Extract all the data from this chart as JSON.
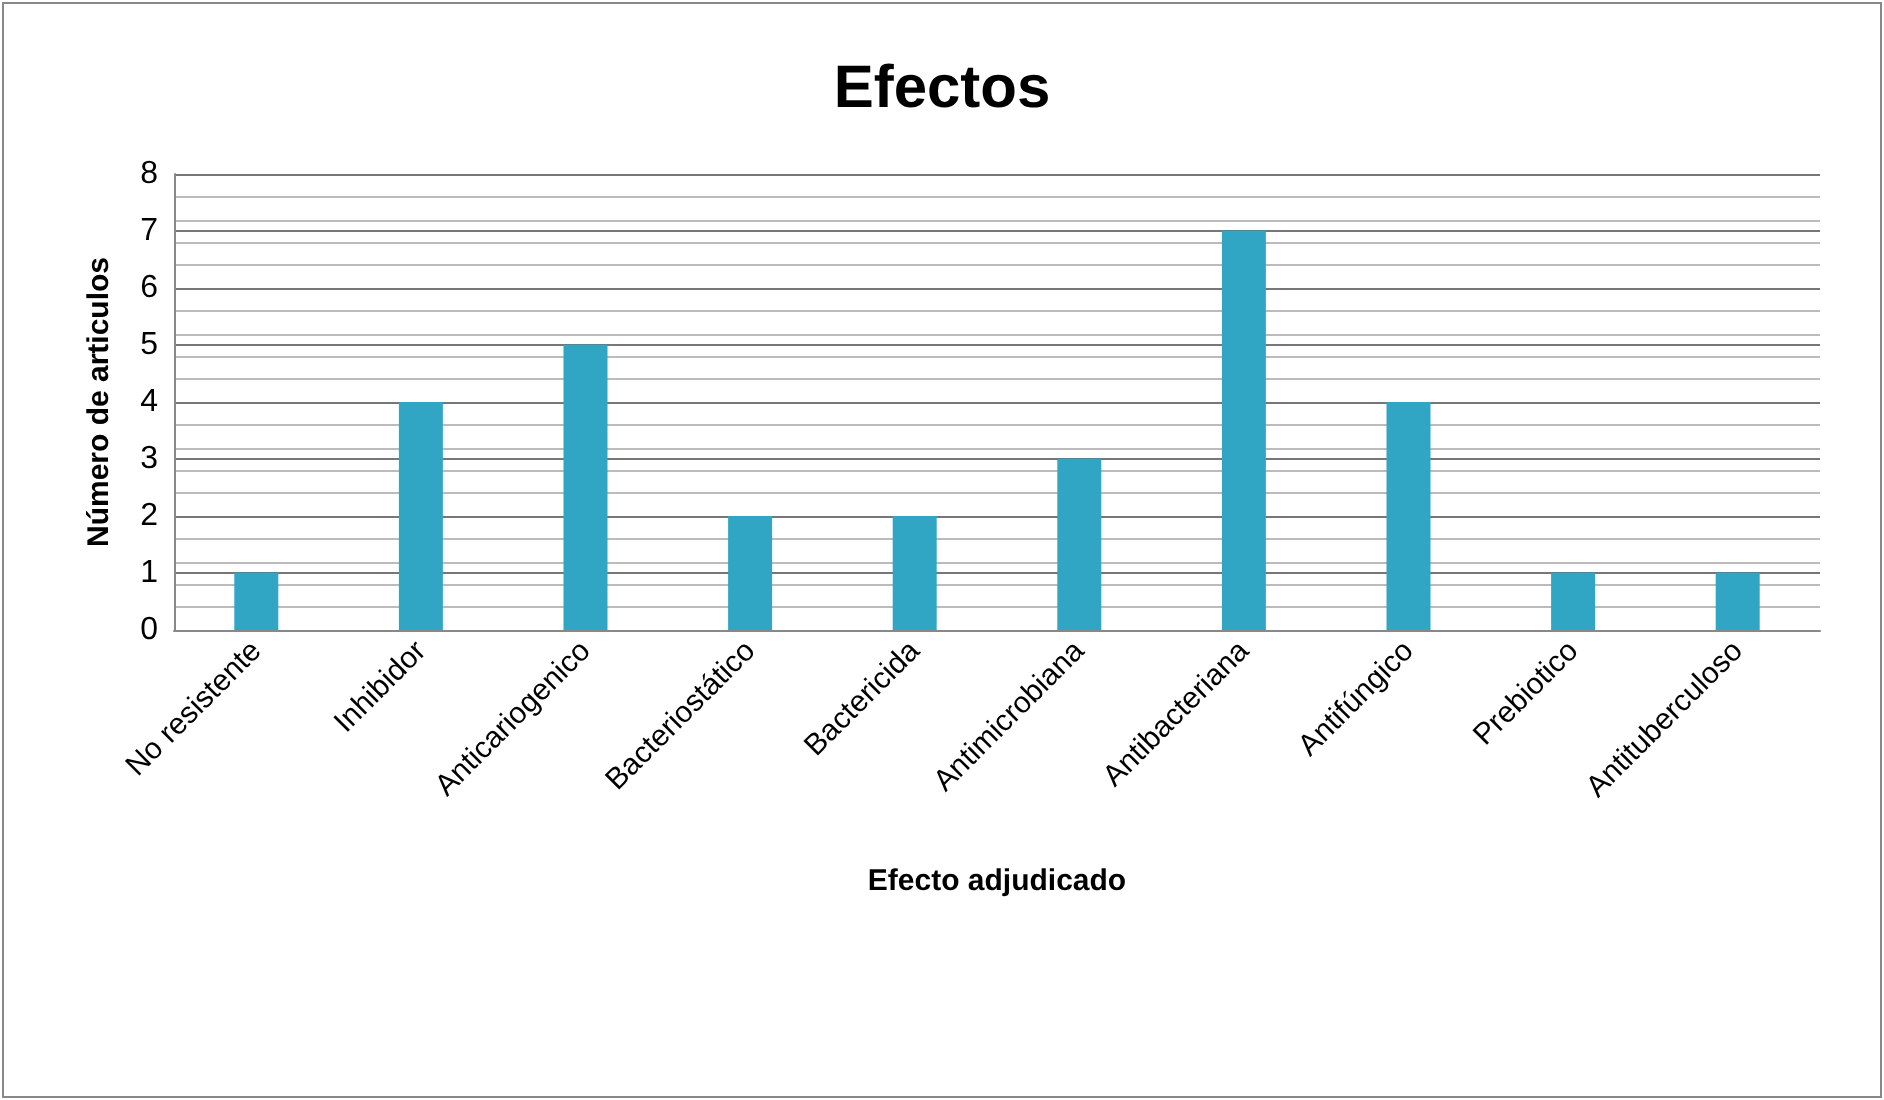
{
  "chart_data": {
    "type": "bar",
    "title": "Efectos",
    "xlabel": "Efecto adjudicado",
    "ylabel": "Número de articulos",
    "categories": [
      "No resistente",
      "Inhibidor",
      "Anticariogenico",
      "Bacteriostático",
      "Bactericida",
      "Antimicrobiana",
      "Antibacteriana",
      "Antifúngico",
      "Prebiotico",
      "Antituberculoso"
    ],
    "values": [
      1,
      4,
      5,
      2,
      2,
      3,
      7,
      4,
      1,
      1
    ],
    "color": "#31a6c4",
    "ylim": [
      0,
      8
    ],
    "yticks": [
      0,
      1,
      2,
      3,
      4,
      5,
      6,
      7,
      8
    ],
    "grid": "y"
  }
}
